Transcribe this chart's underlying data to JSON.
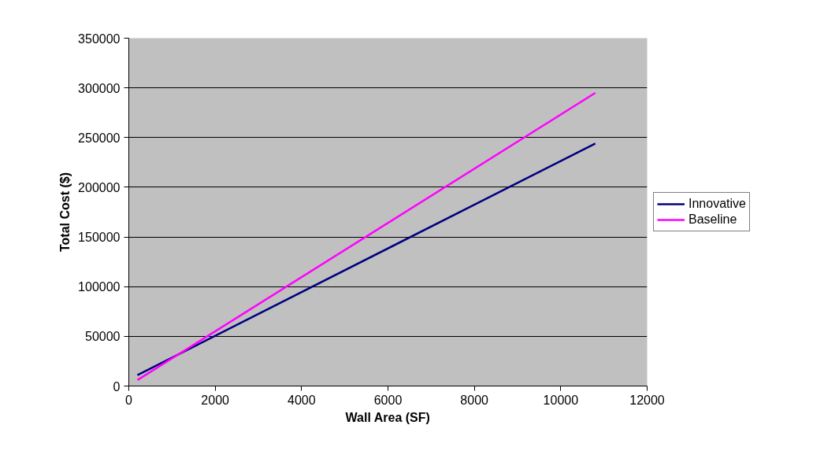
{
  "chart_data": {
    "type": "line",
    "xlabel": "Wall Area (SF)",
    "ylabel": "Total Cost ($)",
    "xlim": [
      0,
      12000
    ],
    "xticks": [
      0,
      2000,
      4000,
      6000,
      8000,
      10000,
      12000
    ],
    "ylim": [
      0,
      350000
    ],
    "yticks": [
      0,
      50000,
      100000,
      150000,
      200000,
      250000,
      300000,
      350000
    ],
    "grid": "y",
    "legend": "right",
    "marker": "none",
    "line_style": "solid",
    "x": [
      200,
      10800
    ],
    "series": [
      {
        "name": "Innovative",
        "color": "#000080",
        "values": [
          11000,
          244000
        ]
      },
      {
        "name": "Baseline",
        "color": "#ff00ff",
        "values": [
          6000,
          295000
        ]
      }
    ]
  }
}
